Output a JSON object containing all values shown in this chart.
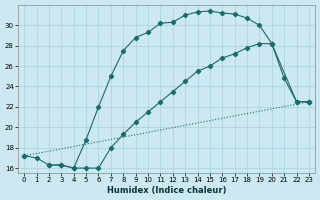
{
  "xlabel": "Humidex (Indice chaleur)",
  "bg_color": "#cce8f0",
  "grid_color": "#aacfdc",
  "line_color": "#1a6b6b",
  "xlim": [
    -0.5,
    23.5
  ],
  "ylim": [
    15.5,
    32.0
  ],
  "xticks": [
    0,
    1,
    2,
    3,
    4,
    5,
    6,
    7,
    8,
    9,
    10,
    11,
    12,
    13,
    14,
    15,
    16,
    17,
    18,
    19,
    20,
    21,
    22,
    23
  ],
  "yticks": [
    16,
    18,
    20,
    22,
    24,
    26,
    28,
    30
  ],
  "line1_x": [
    0,
    1,
    2,
    3,
    4,
    5,
    6,
    7,
    8,
    9,
    10,
    11,
    12,
    13,
    14,
    15,
    16,
    17,
    18,
    19,
    20,
    21,
    22,
    23
  ],
  "line1_y": [
    17.2,
    17.0,
    16.3,
    16.3,
    16.0,
    18.8,
    22.0,
    25.0,
    27.5,
    28.8,
    29.3,
    30.2,
    30.3,
    31.0,
    31.3,
    31.4,
    31.2,
    31.1,
    30.7,
    30.0,
    28.2,
    24.8,
    22.5,
    22.5
  ],
  "line2_x": [
    2,
    3,
    4,
    5,
    6,
    7,
    8,
    9,
    10,
    11,
    12,
    13,
    14,
    15,
    16,
    17,
    18,
    19,
    20,
    22,
    23
  ],
  "line2_y": [
    16.3,
    16.3,
    16.0,
    16.0,
    16.0,
    18.0,
    19.3,
    20.5,
    21.5,
    22.5,
    23.5,
    24.5,
    25.5,
    26.0,
    26.8,
    27.2,
    27.8,
    28.2,
    28.2,
    22.5,
    22.5
  ],
  "line3_x": [
    0,
    23
  ],
  "line3_y": [
    17.2,
    22.5
  ]
}
